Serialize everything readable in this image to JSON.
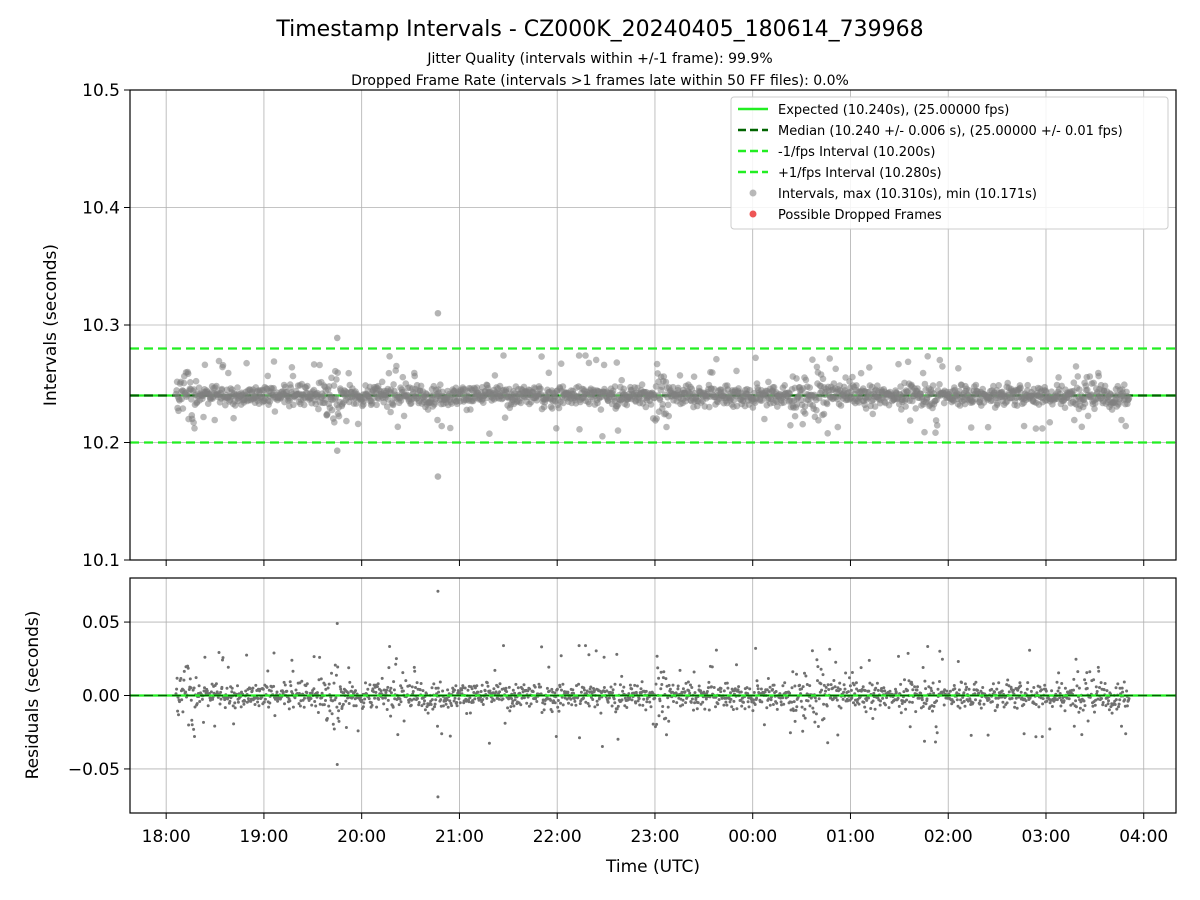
{
  "chart_data": {
    "type": "scatter",
    "title": "Timestamp Intervals - CZ000K_20240405_180614_739968",
    "subtitle_lines": [
      "Jitter Quality (intervals within +/-1 frame): 99.9%",
      "Dropped Frame Rate (intervals >1 frames late within 50 FF files): 0.0%"
    ],
    "xlabel": "Time (UTC)",
    "x_tick_labels": [
      "18:00",
      "19:00",
      "20:00",
      "21:00",
      "22:00",
      "23:00",
      "00:00",
      "01:00",
      "02:00",
      "03:00",
      "04:00"
    ],
    "x_range_hours": [
      17.63,
      28.33
    ],
    "data_time_range_hours": [
      18.1,
      27.85
    ],
    "grid": true,
    "legend_placement": "top-right",
    "panels": [
      {
        "name": "intervals",
        "ylabel": "Intervals (seconds)",
        "ylim": [
          10.1,
          10.5
        ],
        "y_ticks": [
          10.1,
          10.2,
          10.3,
          10.4,
          10.5
        ],
        "y_tick_labels": [
          "10.1",
          "10.2",
          "10.3",
          "10.4",
          "10.5"
        ],
        "reference_lines": [
          {
            "name": "Expected (10.240s), (25.00000 fps)",
            "y": 10.24,
            "style": "solid",
            "color": "#22ee22"
          },
          {
            "name": "Median (10.240 +/- 0.006 s), (25.00000 +/- 0.01 fps)",
            "y": 10.24,
            "style": "dashed",
            "color": "#006400"
          },
          {
            "name": "-1/fps Interval (10.200s)",
            "y": 10.2,
            "style": "dashed",
            "color": "#22ee22"
          },
          {
            "name": "+1/fps Interval (10.280s)",
            "y": 10.28,
            "style": "dashed",
            "color": "#22ee22"
          }
        ],
        "series": [
          {
            "name": "Intervals, max (10.310s), min (10.171s)",
            "color": "#808080",
            "center": 10.24,
            "max": 10.31,
            "min": 10.171,
            "notable_points": [
              {
                "x": 20.78,
                "y": 10.31
              },
              {
                "x": 20.78,
                "y": 10.171
              },
              {
                "x": 19.75,
                "y": 10.289
              },
              {
                "x": 19.75,
                "y": 10.193
              }
            ]
          },
          {
            "name": "Possible Dropped Frames",
            "color": "#ee5555",
            "points": []
          }
        ]
      },
      {
        "name": "residuals",
        "ylabel": "Residuals (seconds)",
        "ylim": [
          -0.08,
          0.08
        ],
        "y_ticks": [
          0.05,
          0.0,
          -0.05
        ],
        "y_tick_labels": [
          "0.05",
          "0.00",
          "−0.05"
        ],
        "reference_line": {
          "y": 0.0,
          "color": "#22ee22"
        },
        "series": [
          {
            "name": "residuals",
            "color": "#707070",
            "center": 0.0,
            "max": 0.071,
            "min": -0.069,
            "notable_points": [
              {
                "x": 20.78,
                "y": 0.071
              },
              {
                "x": 20.78,
                "y": -0.069
              },
              {
                "x": 19.75,
                "y": 0.049
              },
              {
                "x": 19.75,
                "y": -0.047
              }
            ]
          }
        ]
      }
    ]
  }
}
